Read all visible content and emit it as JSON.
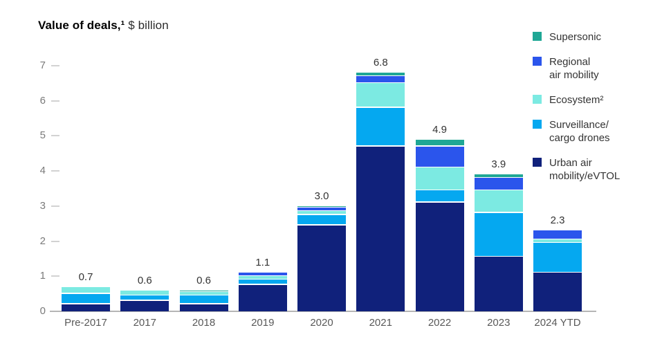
{
  "header": {
    "title_bold": "Value of deals,¹",
    "title_unit": " $ billion"
  },
  "chart_data": {
    "type": "bar",
    "stacked": true,
    "title": "Value of deals,¹ $ billion",
    "xlabel": "",
    "ylabel": "",
    "ylim": [
      0,
      7
    ],
    "y_ticks": [
      0,
      1,
      2,
      3,
      4,
      5,
      6,
      7
    ],
    "grid": "short tick dashes at left axis only",
    "legend_position": "top-right",
    "categories": [
      "Pre-2017",
      "2017",
      "2018",
      "2019",
      "2020",
      "2021",
      "2022",
      "2023",
      "2024 YTD"
    ],
    "totals": [
      "0.7",
      "0.6",
      "0.6",
      "1.1",
      "3.0",
      "6.8",
      "4.9",
      "3.9",
      "2.3"
    ],
    "totals_numeric": [
      0.7,
      0.6,
      0.6,
      1.1,
      3.0,
      6.8,
      4.9,
      3.9,
      2.3
    ],
    "series": [
      {
        "name": "Urban air mobility/eVTOL",
        "color": "#10217B",
        "values": [
          0.2,
          0.3,
          0.2,
          0.75,
          2.45,
          4.7,
          3.1,
          1.55,
          1.1
        ]
      },
      {
        "name": "Surveillance/cargo drones",
        "color": "#05A8F0",
        "values": [
          0.3,
          0.15,
          0.25,
          0.15,
          0.3,
          1.1,
          0.35,
          1.25,
          0.85
        ]
      },
      {
        "name": "Ecosystem²",
        "color": "#7CEAE2",
        "values": [
          0.2,
          0.15,
          0.1,
          0.1,
          0.1,
          0.7,
          0.65,
          0.65,
          0.1
        ]
      },
      {
        "name": "Regional air mobility",
        "color": "#2B55EC",
        "values": [
          0,
          0,
          0,
          0.1,
          0.1,
          0.2,
          0.6,
          0.35,
          0.25
        ]
      },
      {
        "name": "Supersonic",
        "color": "#1FA795",
        "values": [
          0,
          0,
          0.05,
          0,
          0.05,
          0.1,
          0.2,
          0.1,
          0
        ]
      }
    ],
    "legend": [
      {
        "lines": [
          "Supersonic"
        ],
        "color": "#1FA795"
      },
      {
        "lines": [
          "Regional",
          "air mobility"
        ],
        "color": "#2B55EC"
      },
      {
        "lines": [
          "Ecosystem²"
        ],
        "color": "#7CEAE2"
      },
      {
        "lines": [
          "Surveillance/",
          "cargo drones"
        ],
        "color": "#05A8F0"
      },
      {
        "lines": [
          "Urban air",
          "mobility/eVTOL"
        ],
        "color": "#10217B"
      }
    ],
    "theme": {
      "background": "#FFFFFF",
      "axis_line_color": "#B5B5B5",
      "tick_dash_color": "#D2D2D2",
      "y_label_color": "#7A7A7A",
      "x_label_color": "#595959",
      "value_label_color": "#333333"
    }
  }
}
